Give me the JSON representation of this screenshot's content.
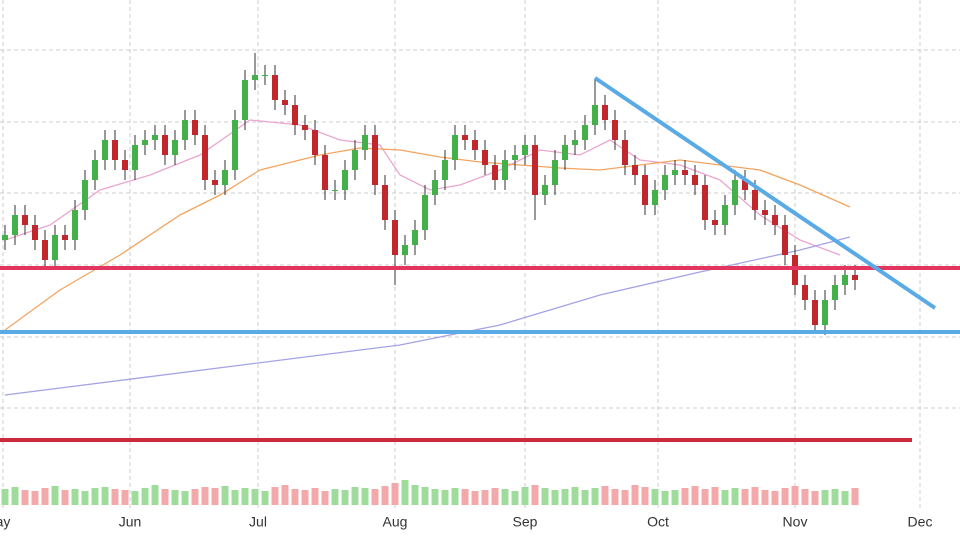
{
  "chart_data": {
    "type": "candlestick",
    "xlim": [
      -0.5,
      95.5
    ],
    "ylim": [
      0,
      540
    ],
    "xticks": [
      {
        "value": -0.2,
        "label": "ay"
      },
      {
        "value": 12.5,
        "label": "Jun"
      },
      {
        "value": 25.3,
        "label": "Jul"
      },
      {
        "value": 39,
        "label": "Aug"
      },
      {
        "value": 52,
        "label": "Sep"
      },
      {
        "value": 65.3,
        "label": "Oct"
      },
      {
        "value": 79,
        "label": "Nov"
      },
      {
        "value": 91.5,
        "label": "Dec"
      }
    ],
    "hgrid": [
      490,
      418,
      347,
      275,
      203,
      132
    ],
    "grid": true,
    "up_color": "#44b04a",
    "down_color": "#c0282e",
    "x": [
      0,
      1,
      2,
      3,
      4,
      5,
      6,
      7,
      8,
      9,
      10,
      11,
      12,
      13,
      14,
      15,
      16,
      17,
      18,
      19,
      20,
      21,
      22,
      23,
      24,
      25,
      26,
      27,
      28,
      29,
      30,
      31,
      32,
      33,
      34,
      35,
      36,
      37,
      38,
      39,
      40,
      41,
      42,
      43,
      44,
      45,
      46,
      47,
      48,
      49,
      50,
      51,
      52,
      53,
      54,
      55,
      56,
      57,
      58,
      59,
      60,
      61,
      62,
      63,
      64,
      65,
      66,
      67,
      68,
      69,
      70,
      71,
      72,
      73,
      74,
      75,
      76,
      77,
      78,
      79,
      80,
      81,
      82,
      83,
      84,
      85
    ],
    "open": [
      300,
      305,
      325,
      315,
      300,
      280,
      305,
      300,
      330,
      360,
      380,
      400,
      380,
      370,
      395,
      400,
      405,
      385,
      400,
      420,
      405,
      360,
      355,
      370,
      420,
      460,
      465,
      465,
      440,
      435,
      415,
      410,
      385,
      350,
      350,
      370,
      390,
      405,
      355,
      320,
      285,
      295,
      310,
      345,
      360,
      380,
      405,
      400,
      390,
      375,
      360,
      380,
      385,
      395,
      345,
      355,
      380,
      395,
      400,
      415,
      435,
      420,
      400,
      375,
      365,
      335,
      350,
      365,
      370,
      365,
      355,
      320,
      315,
      335,
      360,
      350,
      330,
      325,
      315,
      285,
      255,
      240,
      215,
      240,
      255,
      265
    ],
    "high": [
      315,
      335,
      335,
      325,
      310,
      315,
      315,
      340,
      370,
      390,
      410,
      410,
      390,
      405,
      410,
      415,
      415,
      410,
      430,
      430,
      415,
      370,
      380,
      430,
      470,
      487,
      475,
      475,
      450,
      445,
      425,
      420,
      395,
      360,
      380,
      400,
      415,
      415,
      365,
      330,
      305,
      320,
      355,
      370,
      390,
      415,
      415,
      410,
      400,
      385,
      390,
      395,
      405,
      405,
      365,
      390,
      405,
      410,
      425,
      462,
      445,
      430,
      410,
      385,
      375,
      360,
      375,
      380,
      380,
      375,
      365,
      330,
      345,
      370,
      370,
      360,
      340,
      335,
      325,
      295,
      265,
      250,
      250,
      265,
      275,
      275
    ],
    "low": [
      290,
      295,
      305,
      290,
      270,
      270,
      290,
      290,
      320,
      350,
      370,
      370,
      360,
      360,
      385,
      390,
      375,
      375,
      390,
      395,
      350,
      345,
      345,
      360,
      410,
      450,
      455,
      430,
      425,
      405,
      400,
      375,
      340,
      340,
      340,
      360,
      380,
      345,
      310,
      255,
      275,
      285,
      300,
      335,
      350,
      370,
      390,
      380,
      365,
      350,
      350,
      370,
      375,
      320,
      335,
      345,
      370,
      385,
      390,
      405,
      410,
      390,
      365,
      355,
      325,
      325,
      340,
      355,
      355,
      345,
      310,
      305,
      305,
      325,
      340,
      320,
      315,
      305,
      275,
      245,
      230,
      208,
      205,
      230,
      245,
      250
    ],
    "close": [
      305,
      325,
      315,
      300,
      280,
      305,
      300,
      330,
      360,
      380,
      400,
      380,
      370,
      395,
      400,
      405,
      385,
      400,
      420,
      405,
      360,
      355,
      370,
      420,
      460,
      465,
      465,
      440,
      435,
      415,
      410,
      385,
      350,
      350,
      370,
      390,
      405,
      355,
      320,
      285,
      295,
      310,
      345,
      360,
      380,
      405,
      400,
      390,
      375,
      360,
      380,
      385,
      395,
      345,
      355,
      380,
      395,
      400,
      415,
      435,
      420,
      400,
      375,
      365,
      335,
      350,
      365,
      370,
      365,
      355,
      320,
      315,
      335,
      360,
      350,
      330,
      325,
      315,
      285,
      255,
      240,
      215,
      240,
      255,
      265,
      260
    ],
    "volume": [
      16,
      18,
      15,
      14,
      17,
      19,
      15,
      16,
      14,
      17,
      18,
      16,
      15,
      14,
      17,
      20,
      16,
      15,
      14,
      16,
      18,
      17,
      19,
      15,
      17,
      16,
      14,
      18,
      20,
      16,
      15,
      17,
      14,
      16,
      15,
      18,
      17,
      16,
      19,
      22,
      25,
      20,
      18,
      16,
      15,
      17,
      16,
      14,
      15,
      17,
      16,
      14,
      18,
      20,
      17,
      15,
      16,
      18,
      15,
      17,
      19,
      16,
      15,
      20,
      18,
      16,
      14,
      15,
      17,
      19,
      16,
      18,
      15,
      17,
      16,
      18,
      15,
      14,
      17,
      19,
      16,
      14,
      15,
      16,
      14,
      17
    ],
    "volume_ylim": [
      0,
      40
    ],
    "volume_up_color": "#9fdc9c",
    "volume_down_color": "#f3a9aa",
    "lines": [
      {
        "color": "#eba6cf",
        "x": [
          0,
          4.5,
          9.5,
          14.5,
          19.5,
          24.5,
          29.5,
          33.5,
          37.5,
          39.5,
          42.5,
          45.5,
          49.5,
          53.5,
          57.5,
          60.5,
          63.5,
          67.5,
          71.5,
          75.5,
          79.5,
          83.5
        ],
        "values": [
          300,
          315,
          350,
          365,
          385,
          420,
          415,
          400,
          395,
          365,
          350,
          355,
          370,
          390,
          385,
          400,
          380,
          375,
          360,
          325,
          300,
          285
        ]
      },
      {
        "color": "#f2a560",
        "x": [
          0,
          5.5,
          11.5,
          17.5,
          21.5,
          25.5,
          29.5,
          31.5,
          35.5,
          39.5,
          43.5,
          47.5,
          51.5,
          55.5,
          59.5,
          63.5,
          67.5,
          71.5,
          75.5,
          79.5,
          84.5
        ],
        "values": [
          210,
          250,
          285,
          325,
          345,
          370,
          380,
          385,
          392,
          390,
          383,
          378,
          375,
          372,
          370,
          375,
          380,
          375,
          370,
          355,
          333
        ]
      },
      {
        "color": "#a3a3e6",
        "x": [
          0,
          39.5,
          49.5,
          59.5,
          69.5,
          79.5,
          84.5
        ],
        "values": [
          145,
          195,
          215,
          245,
          268,
          290,
          303
        ]
      }
    ],
    "trendlines": [
      {
        "color": "#5aaae6",
        "x": [
          59,
          93
        ],
        "values": [
          462,
          232
        ]
      }
    ],
    "levels": [
      {
        "color": "#5aaae6",
        "value": 208,
        "x": [
          -0.5,
          95.5
        ]
      },
      {
        "color": "#e23560",
        "value": 272,
        "x": [
          -0.5,
          95.5
        ]
      },
      {
        "color": "#cc2a3a",
        "value": 100,
        "x": [
          -0.5,
          90.7
        ]
      }
    ]
  }
}
